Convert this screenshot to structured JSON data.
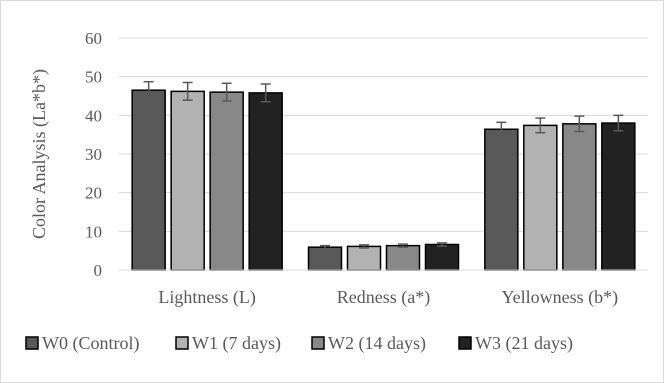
{
  "chart_data": {
    "type": "bar",
    "title": "",
    "xlabel": "",
    "ylabel": "Color Analysis (La*b*)",
    "ylim": [
      0,
      60
    ],
    "yticks": [
      0,
      10,
      20,
      30,
      40,
      50,
      60
    ],
    "grid": true,
    "legend_position": "bottom",
    "categories": [
      "Lightness (L)",
      "Redness (a*)",
      "Yellowness (b*)"
    ],
    "series": [
      {
        "name": "W0 (Control)",
        "color": "#595959",
        "values": [
          46.5,
          5.9,
          36.4
        ],
        "errors": [
          2.2,
          0.4,
          1.8
        ]
      },
      {
        "name": "W1 (7 days)",
        "color": "#b2b2b2",
        "values": [
          46.2,
          6.1,
          37.4
        ],
        "errors": [
          2.3,
          0.4,
          1.9
        ]
      },
      {
        "name": "W2 (14 days)",
        "color": "#888888",
        "values": [
          46.0,
          6.3,
          37.8
        ],
        "errors": [
          2.3,
          0.4,
          2.0
        ]
      },
      {
        "name": "W3 (21 days)",
        "color": "#222222",
        "values": [
          45.8,
          6.6,
          38.0
        ],
        "errors": [
          2.3,
          0.4,
          2.0
        ]
      }
    ]
  }
}
